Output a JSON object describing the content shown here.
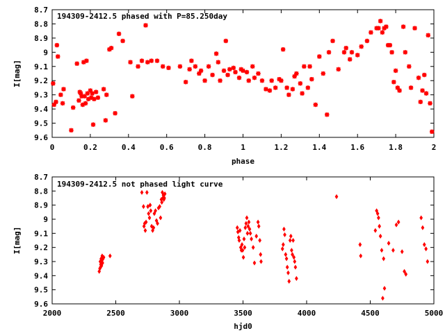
{
  "chart_data": [
    {
      "type": "scatter",
      "title": "194309-2412.5 phased with P=85.250day",
      "xlabel": "phase",
      "ylabel": "I[mag]",
      "xlim": [
        0,
        2
      ],
      "ylim": [
        9.6,
        8.7
      ],
      "y_inverted": true,
      "x_ticks": [
        "0",
        "0.2",
        "0.4",
        "0.6",
        "0.8",
        "1",
        "1.2",
        "1.4",
        "1.6",
        "1.8",
        "2"
      ],
      "x_tick_values": [
        0,
        0.2,
        0.4,
        0.6,
        0.8,
        1.0,
        1.2,
        1.4,
        1.6,
        1.8,
        2.0
      ],
      "y_ticks": [
        "8.7",
        "8.8",
        "8.9",
        "9",
        "9.1",
        "9.2",
        "9.3",
        "9.4",
        "9.5",
        "9.6"
      ],
      "y_tick_values": [
        8.7,
        8.8,
        8.9,
        9.0,
        9.1,
        9.2,
        9.3,
        9.4,
        9.5,
        9.6
      ],
      "marker": "star",
      "color": "#ff0000",
      "grid": false,
      "series": [
        {
          "x": [
            0.005,
            0.01,
            0.02,
            0.025,
            0.03,
            0.045,
            0.055,
            0.06,
            0.1,
            0.11,
            0.13,
            0.14,
            0.145,
            0.15,
            0.155,
            0.16,
            0.165,
            0.17,
            0.175,
            0.18,
            0.185,
            0.19,
            0.2,
            0.205,
            0.21,
            0.215,
            0.22,
            0.23,
            0.24,
            0.27,
            0.28,
            0.285,
            0.3,
            0.31,
            0.33,
            0.35,
            0.37,
            0.41,
            0.42,
            0.45,
            0.47,
            0.49,
            0.5,
            0.52,
            0.55,
            0.58,
            0.61,
            0.67,
            0.7,
            0.72,
            0.73,
            0.75,
            0.77,
            0.78,
            0.8,
            0.82,
            0.84,
            0.86,
            0.87,
            0.88,
            0.9,
            0.91,
            0.92,
            0.93,
            0.95,
            0.96,
            0.98,
            0.99,
            1.0,
            1.02,
            1.03,
            1.05,
            1.06,
            1.08,
            1.1,
            1.12,
            1.14,
            1.15,
            1.17,
            1.19,
            1.2,
            1.21,
            1.23,
            1.24,
            1.26,
            1.27,
            1.28,
            1.3,
            1.31,
            1.32,
            1.34,
            1.35,
            1.36,
            1.38,
            1.4,
            1.42,
            1.44,
            1.45,
            1.47,
            1.5,
            1.53,
            1.54,
            1.56,
            1.57,
            1.6,
            1.62,
            1.65,
            1.67,
            1.7,
            1.71,
            1.72,
            1.73,
            1.74,
            1.75,
            1.76,
            1.77,
            1.78,
            1.79,
            1.8,
            1.81,
            1.82,
            1.84,
            1.85,
            1.87,
            1.88,
            1.9,
            1.92,
            1.93,
            1.94,
            1.95,
            1.96,
            1.97,
            1.98,
            1.99
          ],
          "y": [
            9.22,
            9.37,
            9.35,
            8.95,
            9.03,
            9.3,
            9.36,
            9.26,
            9.55,
            9.39,
            9.08,
            9.34,
            9.28,
            9.29,
            9.31,
            9.37,
            9.07,
            9.31,
            9.36,
            9.06,
            9.29,
            9.33,
            9.27,
            9.32,
            9.29,
            9.51,
            9.33,
            9.28,
            9.32,
            9.26,
            9.48,
            9.3,
            8.98,
            8.97,
            9.43,
            8.87,
            8.92,
            9.07,
            9.31,
            9.1,
            9.06,
            8.81,
            9.07,
            9.06,
            9.06,
            9.1,
            9.11,
            9.1,
            9.21,
            9.12,
            9.06,
            9.1,
            9.15,
            9.13,
            9.2,
            9.1,
            9.16,
            9.01,
            9.07,
            9.2,
            9.13,
            8.92,
            9.16,
            9.12,
            9.11,
            9.14,
            9.18,
            9.12,
            9.13,
            9.14,
            9.2,
            9.1,
            9.18,
            9.15,
            9.2,
            9.26,
            9.27,
            9.2,
            9.25,
            9.19,
            9.2,
            8.98,
            9.25,
            9.3,
            9.26,
            9.17,
            9.15,
            9.22,
            9.29,
            9.1,
            9.25,
            9.1,
            9.19,
            9.37,
            9.03,
            9.15,
            9.44,
            9.0,
            8.92,
            9.12,
            9.0,
            8.97,
            9.05,
            9.0,
            9.02,
            8.96,
            8.92,
            8.86,
            8.83,
            8.83,
            8.78,
            8.86,
            8.83,
            8.82,
            8.95,
            8.95,
            9.0,
            9.21,
            9.13,
            9.25,
            9.27,
            8.82,
            9.0,
            9.1,
            9.25,
            8.83,
            9.18,
            9.35,
            9.27,
            9.16,
            9.29,
            8.88,
            9.36,
            9.56
          ]
        }
      ]
    },
    {
      "type": "scatter",
      "title": "194309-2412.5 not phased light curve",
      "xlabel": "hjd0",
      "ylabel": "I[mag]",
      "xlim": [
        2000,
        5000
      ],
      "ylim": [
        9.6,
        8.7
      ],
      "y_inverted": true,
      "x_ticks": [
        "2000",
        "2500",
        "3000",
        "3500",
        "4000",
        "4500",
        "5000"
      ],
      "x_tick_values": [
        2000,
        2500,
        3000,
        3500,
        4000,
        4500,
        5000
      ],
      "y_ticks": [
        "8.7",
        "8.8",
        "8.9",
        "9",
        "9.1",
        "9.2",
        "9.3",
        "9.4",
        "9.5",
        "9.6"
      ],
      "y_tick_values": [
        8.7,
        8.8,
        8.9,
        9.0,
        9.1,
        9.2,
        9.3,
        9.4,
        9.5,
        9.6
      ],
      "marker": "diamond",
      "color": "#ff0000",
      "grid": false,
      "series": [
        {
          "x": [
            2370,
            2375,
            2378,
            2380,
            2382,
            2385,
            2388,
            2390,
            2393,
            2396,
            2400,
            2405,
            2455,
            2705,
            2718,
            2722,
            2727,
            2732,
            2738,
            2745,
            2752,
            2758,
            2765,
            2770,
            2775,
            2782,
            2790,
            2797,
            2803,
            2812,
            2820,
            2828,
            2836,
            2845,
            2852,
            2858,
            2862,
            2866,
            2870,
            2874,
            2878,
            2882,
            2886,
            3455,
            3460,
            3466,
            3470,
            3476,
            3482,
            3487,
            3492,
            3497,
            3503,
            3508,
            3513,
            3518,
            3524,
            3530,
            3535,
            3540,
            3546,
            3552,
            3558,
            3566,
            3580,
            3590,
            3605,
            3618,
            3624,
            3632,
            3638,
            3642,
            3810,
            3816,
            3822,
            3828,
            3835,
            3842,
            3848,
            3855,
            3862,
            3870,
            3876,
            3882,
            3888,
            3894,
            3900,
            3906,
            3912,
            3920,
            4235,
            4420,
            4425,
            4540,
            4550,
            4558,
            4565,
            4572,
            4580,
            4590,
            4598,
            4605,
            4612,
            4645,
            4680,
            4705,
            4722,
            4750,
            4768,
            4780,
            4900,
            4912,
            4925,
            4938,
            4950
          ],
          "y": [
            9.37,
            9.35,
            9.3,
            9.34,
            9.32,
            9.28,
            9.33,
            9.3,
            9.26,
            9.31,
            9.28,
            9.27,
            9.26,
            8.81,
            8.91,
            9.05,
            9.03,
            9.08,
            9.02,
            8.81,
            8.91,
            8.96,
            8.99,
            8.9,
            8.94,
            9.05,
            9.08,
            9.06,
            8.96,
            8.94,
            9.01,
            9.03,
            8.92,
            8.91,
            8.99,
            8.86,
            8.88,
            8.81,
            8.85,
            8.83,
            8.86,
            8.85,
            8.82,
            9.06,
            9.09,
            9.13,
            9.15,
            9.08,
            9.2,
            9.22,
            9.18,
            9.22,
            9.27,
            9.14,
            9.2,
            9.06,
            9.03,
            8.99,
            9.1,
            9.05,
            9.02,
            9.07,
            9.1,
            9.14,
            9.2,
            9.31,
            9.12,
            9.02,
            9.05,
            9.15,
            9.25,
            9.3,
            9.21,
            9.18,
            9.07,
            9.11,
            9.25,
            9.28,
            9.34,
            9.38,
            9.44,
            9.15,
            9.12,
            9.22,
            9.25,
            9.15,
            9.27,
            9.3,
            9.34,
            9.42,
            8.84,
            9.18,
            9.26,
            9.08,
            8.94,
            8.96,
            8.99,
            9.05,
            9.12,
            9.22,
            9.56,
            9.28,
            9.49,
            9.17,
            9.22,
            9.04,
            9.02,
            9.23,
            9.37,
            9.39,
            8.99,
            9.06,
            9.18,
            9.21,
            9.3
          ]
        }
      ]
    }
  ]
}
